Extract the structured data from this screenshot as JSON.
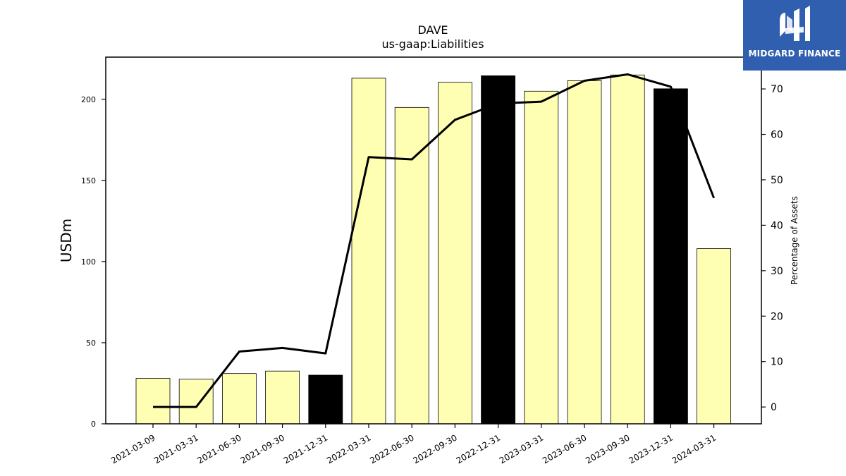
{
  "chart_data": {
    "type": "bar",
    "title": "DAVE",
    "subtitle": "us-gaap:Liabilities",
    "ylabel": "USDm",
    "y2label": "Percentage of Assets",
    "categories": [
      "2021-03-09",
      "2021-03-31",
      "2021-06-30",
      "2021-09-30",
      "2021-12-31",
      "2022-03-31",
      "2022-06-30",
      "2022-09-30",
      "2022-12-31",
      "2023-03-31",
      "2023-06-30",
      "2023-09-30",
      "2023-12-31",
      "2024-03-31"
    ],
    "series": [
      {
        "type": "bar",
        "values": [
          28,
          27.5,
          31,
          32.5,
          30,
          213,
          195,
          210.5,
          214.5,
          205,
          211.5,
          215,
          206.5,
          108
        ]
      },
      {
        "type": "line",
        "axis": "right",
        "values": [
          0,
          0,
          12.2,
          13,
          11.8,
          55,
          54.5,
          63.2,
          66.8,
          67.2,
          71.8,
          73.2,
          70.5,
          46
        ]
      }
    ],
    "highlight_indices": [
      4,
      8,
      12
    ],
    "ylim": [
      0,
      226
    ],
    "y2lim": [
      -3.7,
      77
    ],
    "yticks": [
      0,
      50,
      100,
      150,
      200
    ],
    "y2ticks": [
      0,
      10,
      20,
      30,
      40,
      50,
      60,
      70
    ],
    "colors": {
      "bar": "#ffffb3",
      "bar_highlight": "#000000",
      "line": "#000000",
      "bar_edge": "#000000"
    },
    "grid": false,
    "legend": "none"
  },
  "logo": {
    "text": "MIDGARD FINANCE",
    "color": "#2f5fae"
  }
}
